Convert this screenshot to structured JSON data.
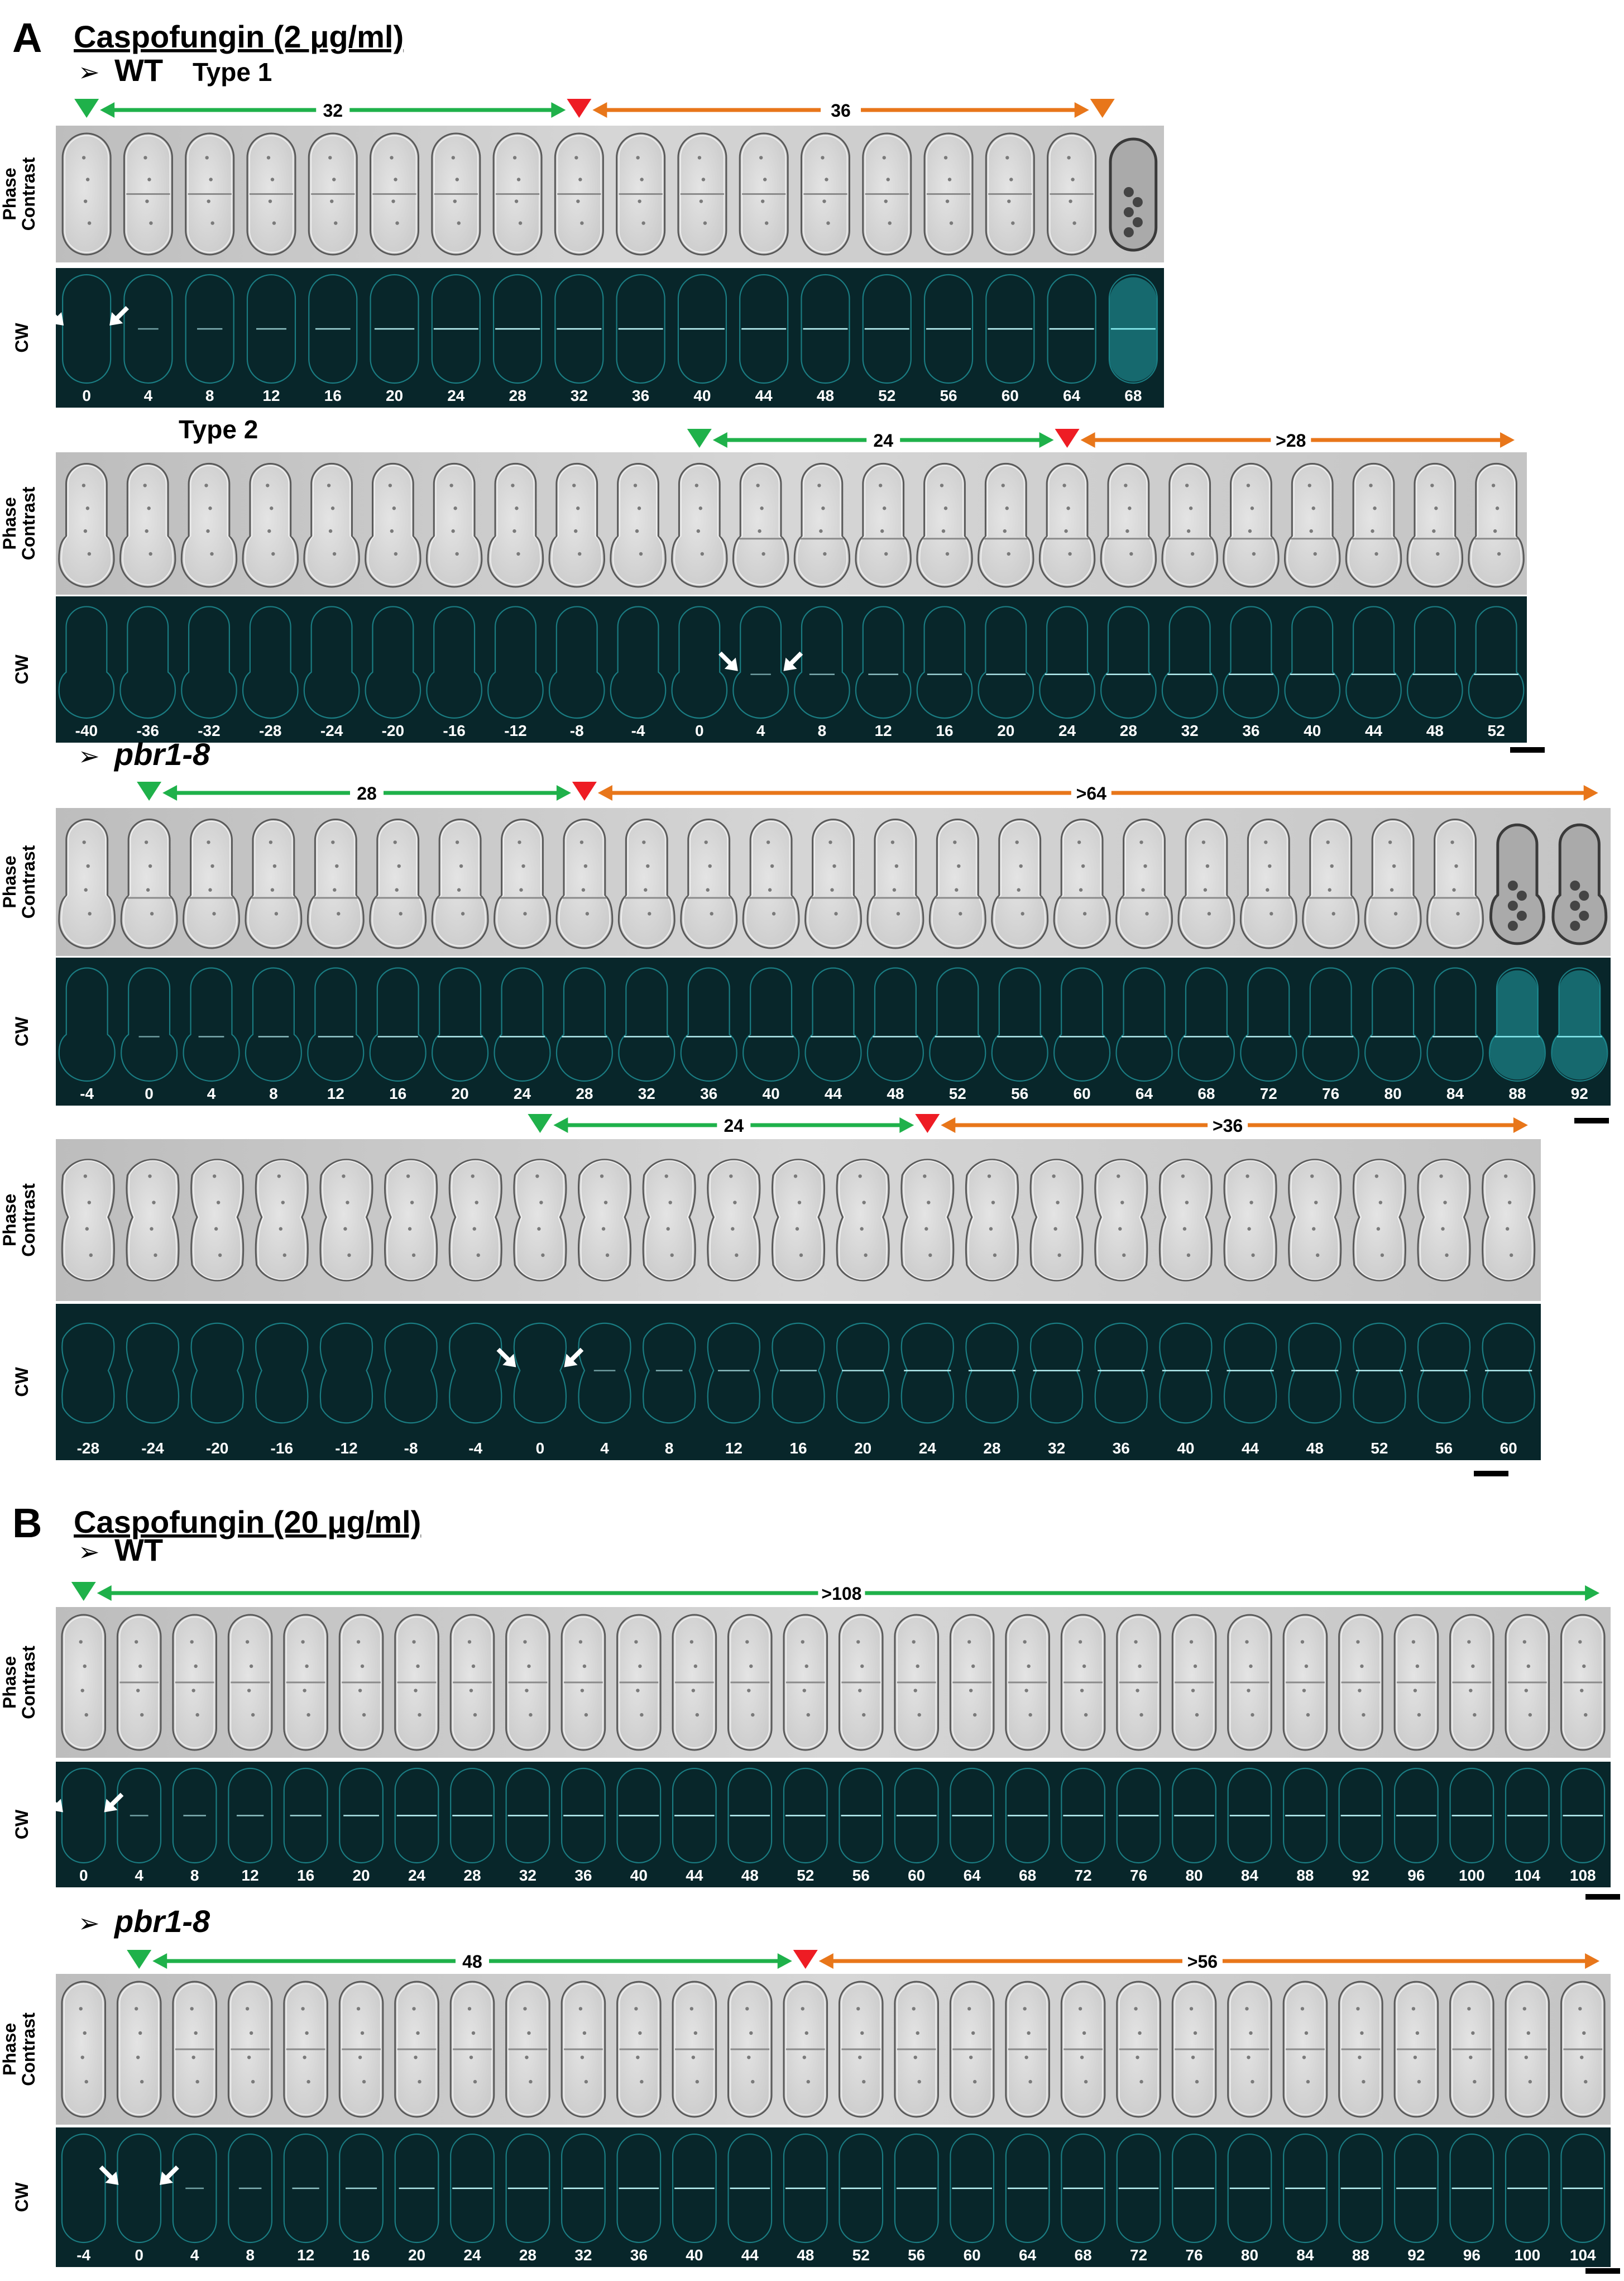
{
  "colors": {
    "green": "#1fb14a",
    "red": "#ee1c24",
    "orange": "#e8761a",
    "cyan": "#31e6ee",
    "cw_background": "#08262a",
    "phase_background": "#c9c9c9"
  },
  "row_labels": {
    "phase_line1": "Phase",
    "phase_line2": "Contrast",
    "cw": "CW"
  },
  "sections": [
    {
      "letter": "A",
      "title": "Caspofungin (2 μg/ml)",
      "genotypes": [
        {
          "name": "WT",
          "italic": false,
          "series": [
            {
              "type_label": "Type 1",
              "times": [
                "0",
                "4",
                "8",
                "12",
                "16",
                "20",
                "24",
                "28",
                "32",
                "36",
                "40",
                "44",
                "48",
                "52",
                "56",
                "60",
                "64",
                "68"
              ],
              "green_label": "32",
              "orange_label": "36",
              "green_start": 0,
              "red_at": 8.5,
              "orange_end": 17,
              "end_marker": "orange",
              "ring_from": 1,
              "white_arrows": 0,
              "lysed_frames": [
                17
              ],
              "cell_shape": "rod"
            },
            {
              "type_label": "Type 2",
              "times": [
                "-40",
                "-36",
                "-32",
                "-28",
                "-24",
                "-20",
                "-16",
                "-12",
                "-8",
                "-4",
                "0",
                "4",
                "8",
                "12",
                "16",
                "20",
                "24",
                "28",
                "32",
                "36",
                "40",
                "44",
                "48",
                "52"
              ],
              "green_label": "24",
              "orange_label": ">28",
              "green_start": 10,
              "red_at": 16.5,
              "orange_end": 23.8,
              "end_marker": "arrow",
              "ring_from": 11,
              "white_arrows": 11,
              "lysed_frames": [],
              "cell_shape": "bulb"
            }
          ]
        },
        {
          "name": "pbr1-8",
          "italic": true,
          "series": [
            {
              "type_label": "",
              "times": [
                "-4",
                "0",
                "4",
                "8",
                "12",
                "16",
                "20",
                "24",
                "28",
                "32",
                "36",
                "40",
                "44",
                "48",
                "52",
                "56",
                "60",
                "64",
                "68",
                "72",
                "76",
                "80",
                "84",
                "88",
                "92"
              ],
              "green_label": "28",
              "orange_label": ">64",
              "green_start": 1,
              "red_at": 8.5,
              "orange_end": 24.8,
              "end_marker": "arrow",
              "ring_from": 1,
              "white_arrows": -1,
              "lysed_frames": [
                23,
                24
              ],
              "cell_shape": "bulb"
            },
            {
              "type_label": "",
              "times": [
                "-28",
                "-24",
                "-20",
                "-16",
                "-12",
                "-8",
                "-4",
                "0",
                "4",
                "8",
                "12",
                "16",
                "20",
                "24",
                "28",
                "32",
                "36",
                "40",
                "44",
                "48",
                "52",
                "56",
                "60"
              ],
              "green_label": "24",
              "orange_label": ">36",
              "green_start": 7,
              "red_at": 13.5,
              "orange_end": 22.8,
              "end_marker": "arrow",
              "ring_from": 8,
              "white_arrows": 7,
              "lysed_frames": [],
              "cell_shape": "round"
            }
          ]
        }
      ]
    },
    {
      "letter": "B",
      "title": "Caspofungin (20 μg/ml)",
      "genotypes": [
        {
          "name": "WT",
          "italic": false,
          "series": [
            {
              "type_label": "",
              "times": [
                "0",
                "4",
                "8",
                "12",
                "16",
                "20",
                "24",
                "28",
                "32",
                "36",
                "40",
                "44",
                "48",
                "52",
                "56",
                "60",
                "64",
                "68",
                "72",
                "76",
                "80",
                "84",
                "88",
                "92",
                "96",
                "100",
                "104",
                "108"
              ],
              "green_label": ">108",
              "orange_label": "",
              "green_start": 0,
              "red_at": -1,
              "orange_end": -1,
              "green_end": 27.8,
              "end_marker": "arrow",
              "ring_from": 1,
              "white_arrows": 0,
              "lysed_frames": [],
              "cell_shape": "rod"
            }
          ]
        },
        {
          "name": "pbr1-8",
          "italic": true,
          "series": [
            {
              "type_label": "",
              "times": [
                "-4",
                "0",
                "4",
                "8",
                "12",
                "16",
                "20",
                "24",
                "28",
                "32",
                "36",
                "40",
                "44",
                "48",
                "52",
                "56",
                "60",
                "64",
                "68",
                "72",
                "76",
                "80",
                "84",
                "88",
                "92",
                "96",
                "100",
                "104"
              ],
              "green_label": "48",
              "orange_label": ">56",
              "green_start": 1,
              "red_at": 13.5,
              "orange_end": 27.8,
              "end_marker": "arrow",
              "ring_from": 2,
              "white_arrows": 1,
              "lysed_frames": [],
              "cell_shape": "rod"
            }
          ]
        }
      ]
    }
  ]
}
